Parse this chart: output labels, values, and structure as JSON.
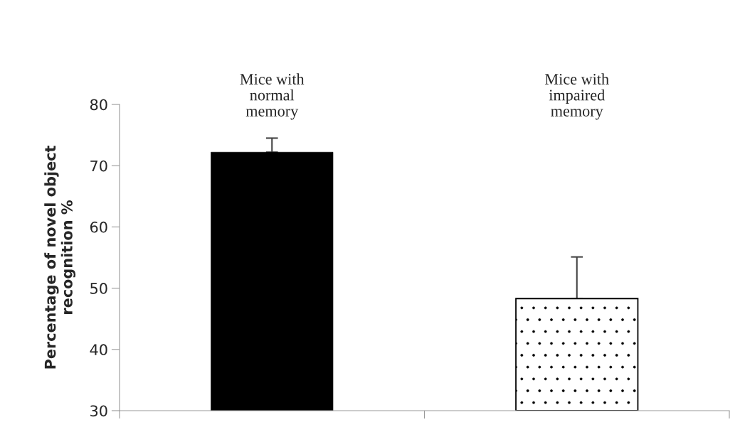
{
  "chart_data": {
    "type": "bar",
    "categories": [
      "Mice with\nnormal\nmemory",
      "Mice with\nimpaired\nmemory"
    ],
    "values": [
      72.2,
      48.3
    ],
    "errors": [
      [
        72.2,
        74.5
      ],
      [
        48.3,
        55.1
      ]
    ],
    "colors": [
      "#000000",
      "#ffffff"
    ],
    "ylabel": "Percentage of novel object\nrecognition %",
    "ylim": [
      30,
      80
    ],
    "yticks": [
      30,
      40,
      50,
      60,
      70,
      80
    ],
    "grid": false
  }
}
